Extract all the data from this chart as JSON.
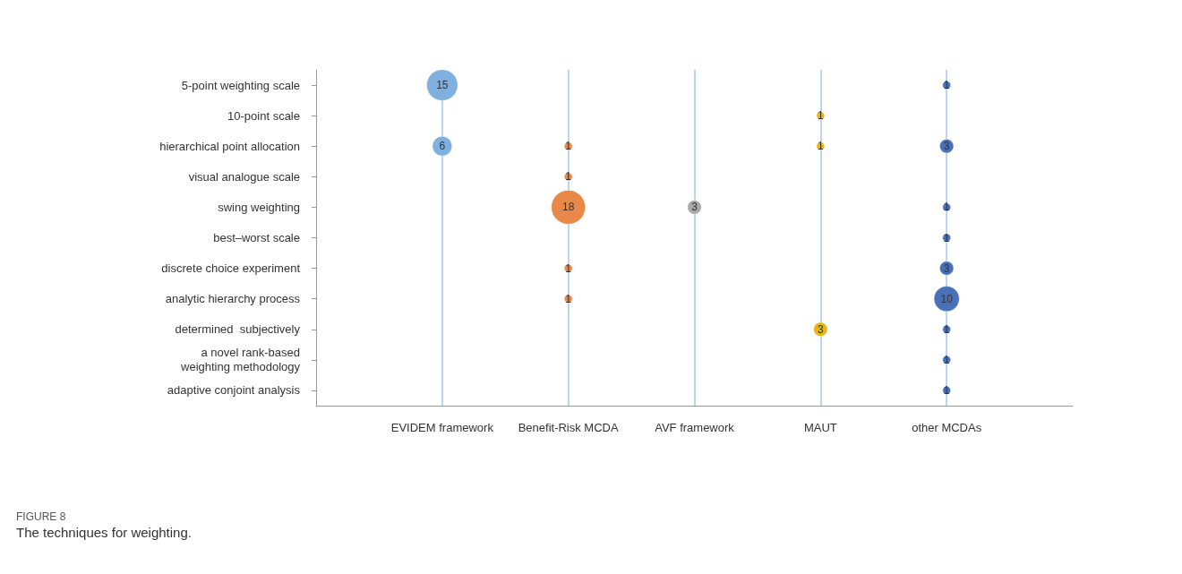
{
  "chart_data": {
    "type": "heatmap",
    "categories": [
      "EVIDEM framework",
      "Benefit-Risk MCDA",
      "AVF framework",
      "MAUT",
      "other MCDAs"
    ],
    "y_categories": [
      "5-point weighting scale",
      "10-point scale",
      "hierarchical point allocation",
      "visual analogue scale",
      "swing weighting",
      "best–worst scale",
      "discrete choice experiment",
      "analytic hierarchy process",
      "determined  subjectively",
      "a novel rank-based\nweighting methodology",
      "adaptive conjoint analysis"
    ],
    "cells": [
      [
        15,
        null,
        null,
        null,
        1
      ],
      [
        null,
        null,
        null,
        1,
        null
      ],
      [
        6,
        1,
        null,
        1,
        3
      ],
      [
        null,
        1,
        null,
        null,
        null
      ],
      [
        null,
        18,
        3,
        null,
        1
      ],
      [
        null,
        null,
        null,
        null,
        1
      ],
      [
        null,
        1,
        null,
        null,
        3
      ],
      [
        null,
        1,
        null,
        null,
        10
      ],
      [
        null,
        null,
        null,
        3,
        1
      ],
      [
        null,
        null,
        null,
        null,
        1
      ],
      [
        null,
        null,
        null,
        null,
        1
      ]
    ],
    "colors": [
      "#7fb0df",
      "#e8894a",
      "#a9a9a9",
      "#e8b810",
      "#4a70b8"
    ],
    "data_labels": true,
    "grid": "x",
    "annotations": [
      "FIGURE 8",
      "The techniques for weighting."
    ]
  }
}
